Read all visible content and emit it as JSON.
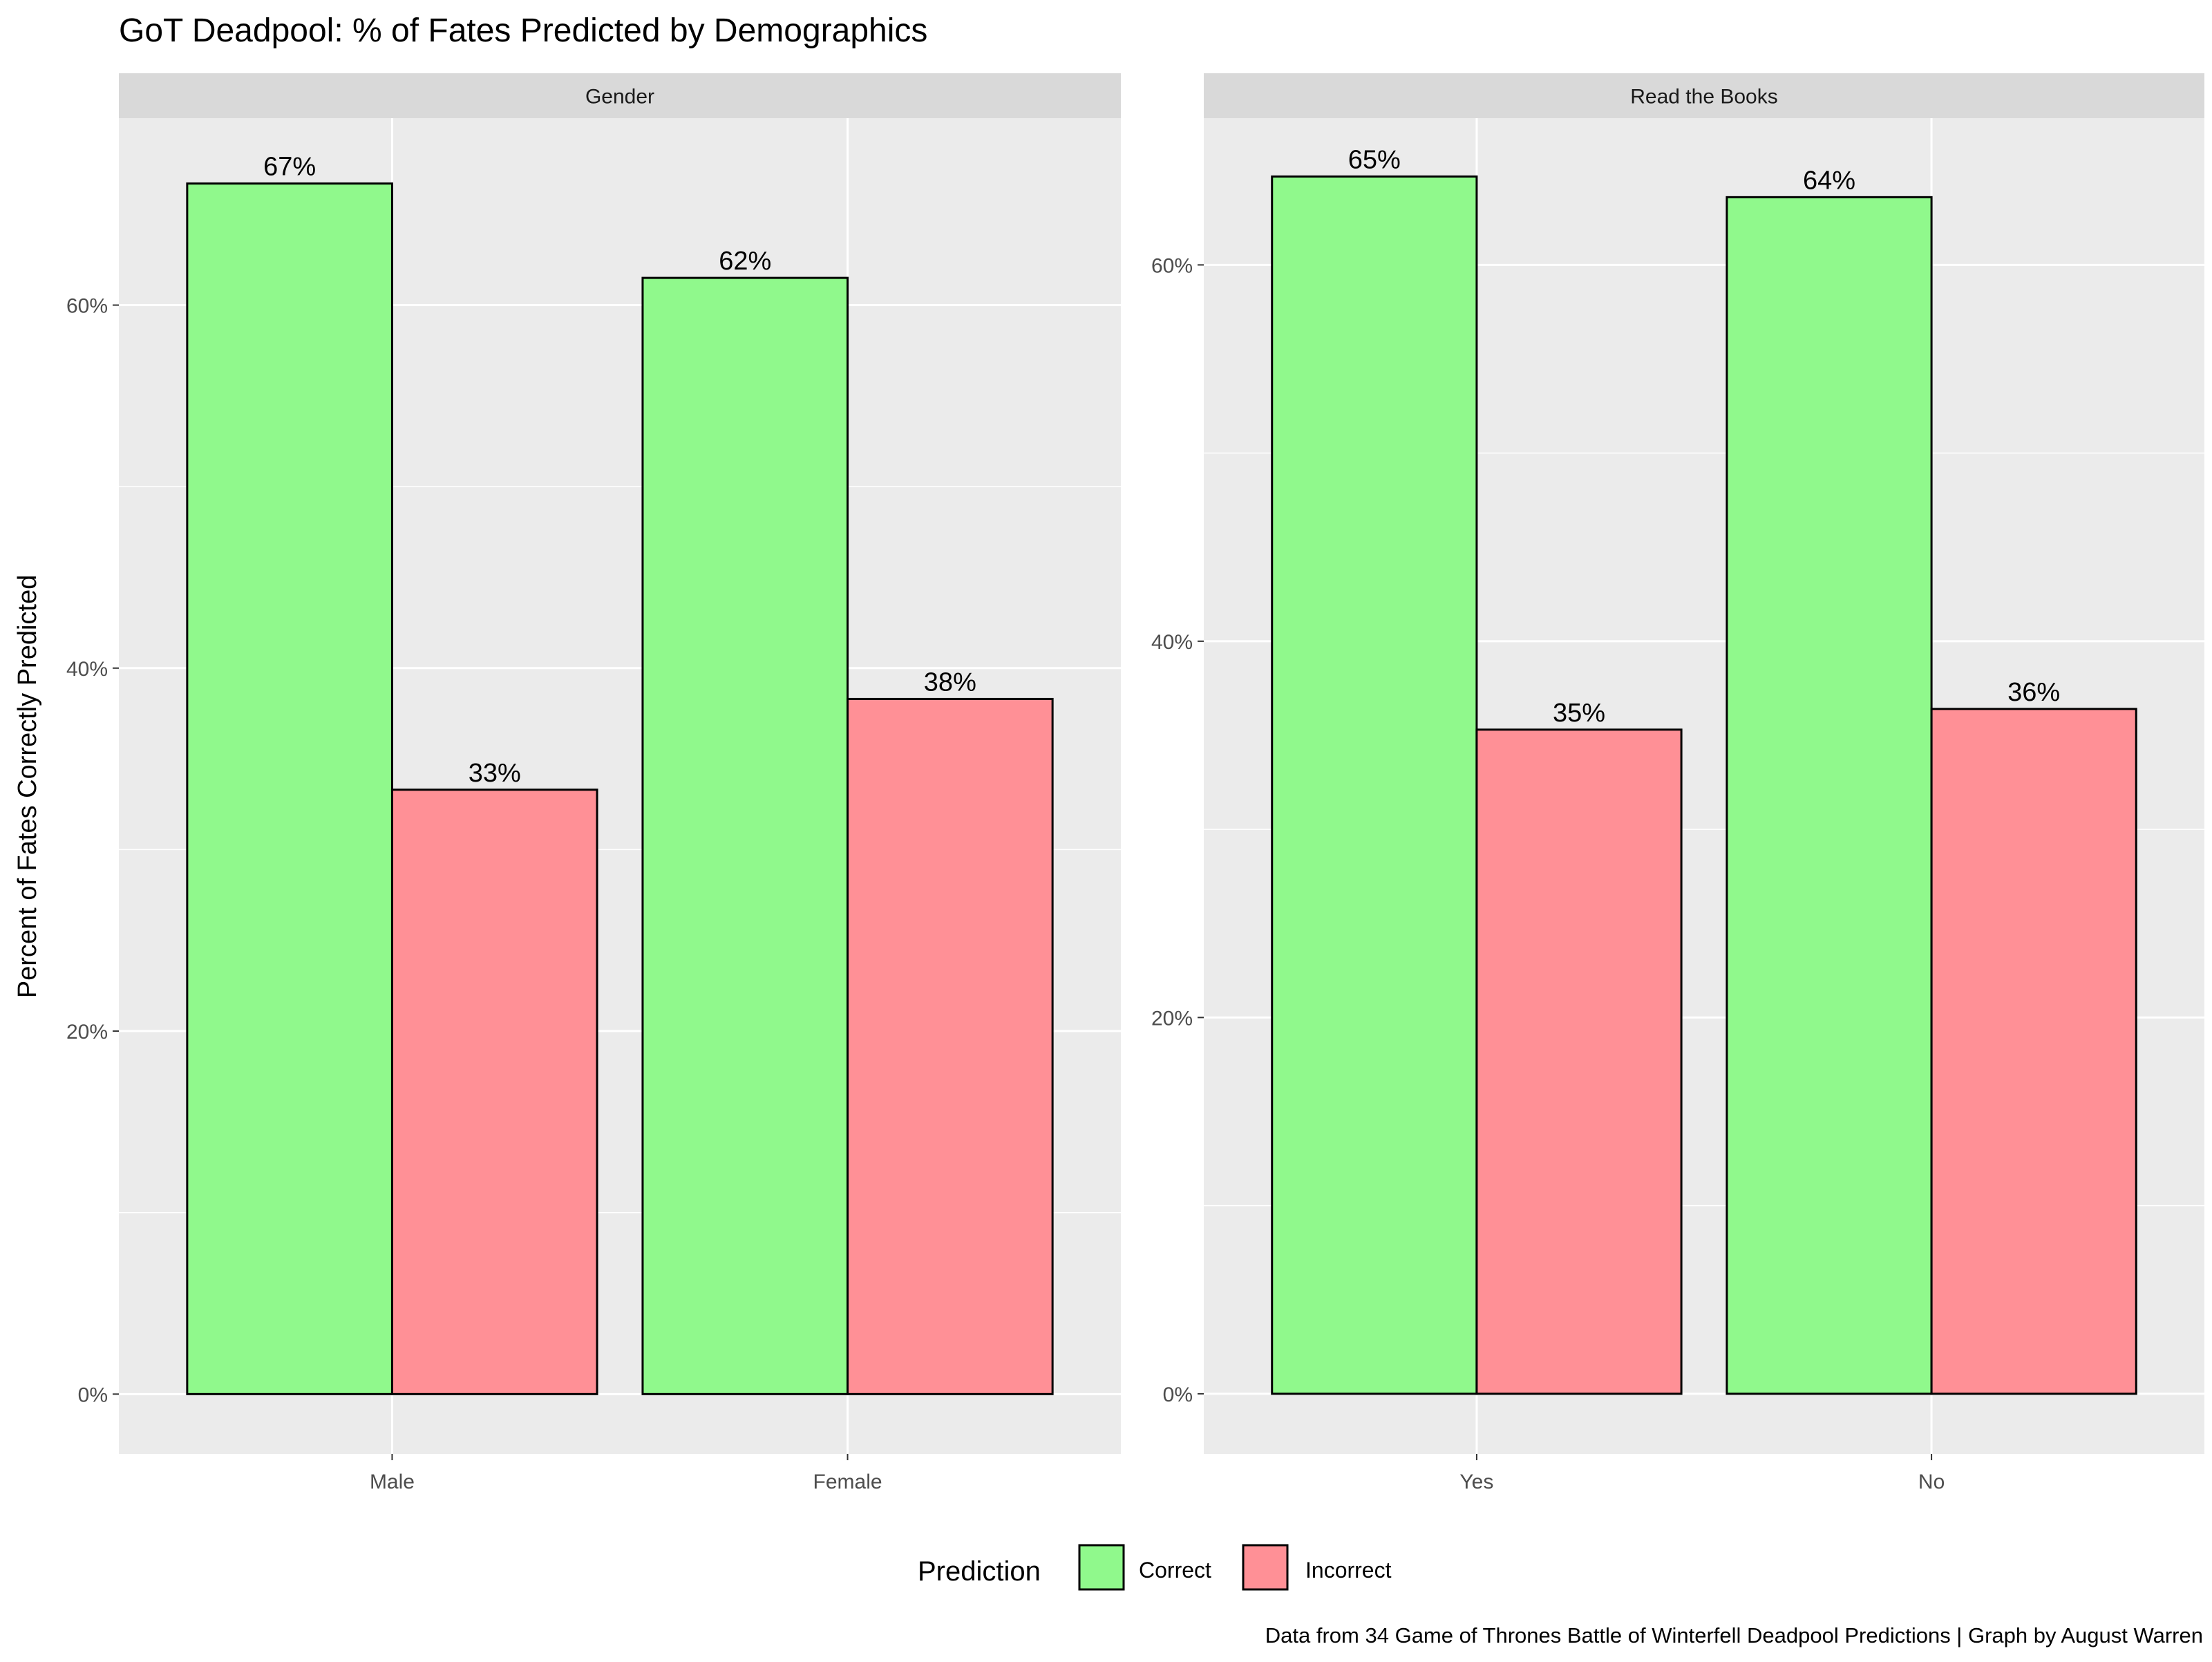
{
  "chart_data": {
    "type": "bar",
    "title": "GoT Deadpool: % of Fates Predicted by Demographics",
    "ylabel": "Percent of Fates Correctly Predicted",
    "caption": "Data from 34 Game of Thrones Battle of Winterfell Deadpool Predictions | Graph by August Warren",
    "legend": {
      "title": "Prediction",
      "position": "bottom",
      "items": [
        {
          "label": "Correct",
          "color": "#90f98c"
        },
        {
          "label": "Incorrect",
          "color": "#ff9096"
        }
      ]
    },
    "grid": true,
    "panels": [
      {
        "strip": "Gender",
        "categories": [
          "Male",
          "Female"
        ],
        "ylim": [
          -3.3,
          70.3
        ],
        "yticks": [
          0,
          20,
          40,
          60
        ],
        "ytick_labels": [
          "0%",
          "20%",
          "40%",
          "60%"
        ],
        "series": [
          {
            "name": "Correct",
            "values": [
              66.7,
              61.5
            ]
          },
          {
            "name": "Incorrect",
            "values": [
              33.3,
              38.3
            ]
          }
        ],
        "labels": [
          [
            "67%",
            "62%"
          ],
          [
            "33%",
            "38%"
          ]
        ]
      },
      {
        "strip": "Read the Books",
        "categories": [
          "Yes",
          "No"
        ],
        "ylim": [
          -3.2,
          67.8
        ],
        "yticks": [
          0,
          20,
          40,
          60
        ],
        "ytick_labels": [
          "0%",
          "20%",
          "40%",
          "60%"
        ],
        "series": [
          {
            "name": "Correct",
            "values": [
              64.7,
              63.6
            ]
          },
          {
            "name": "Incorrect",
            "values": [
              35.3,
              36.4
            ]
          }
        ],
        "labels": [
          [
            "65%",
            "64%"
          ],
          [
            "35%",
            "36%"
          ]
        ]
      }
    ]
  }
}
